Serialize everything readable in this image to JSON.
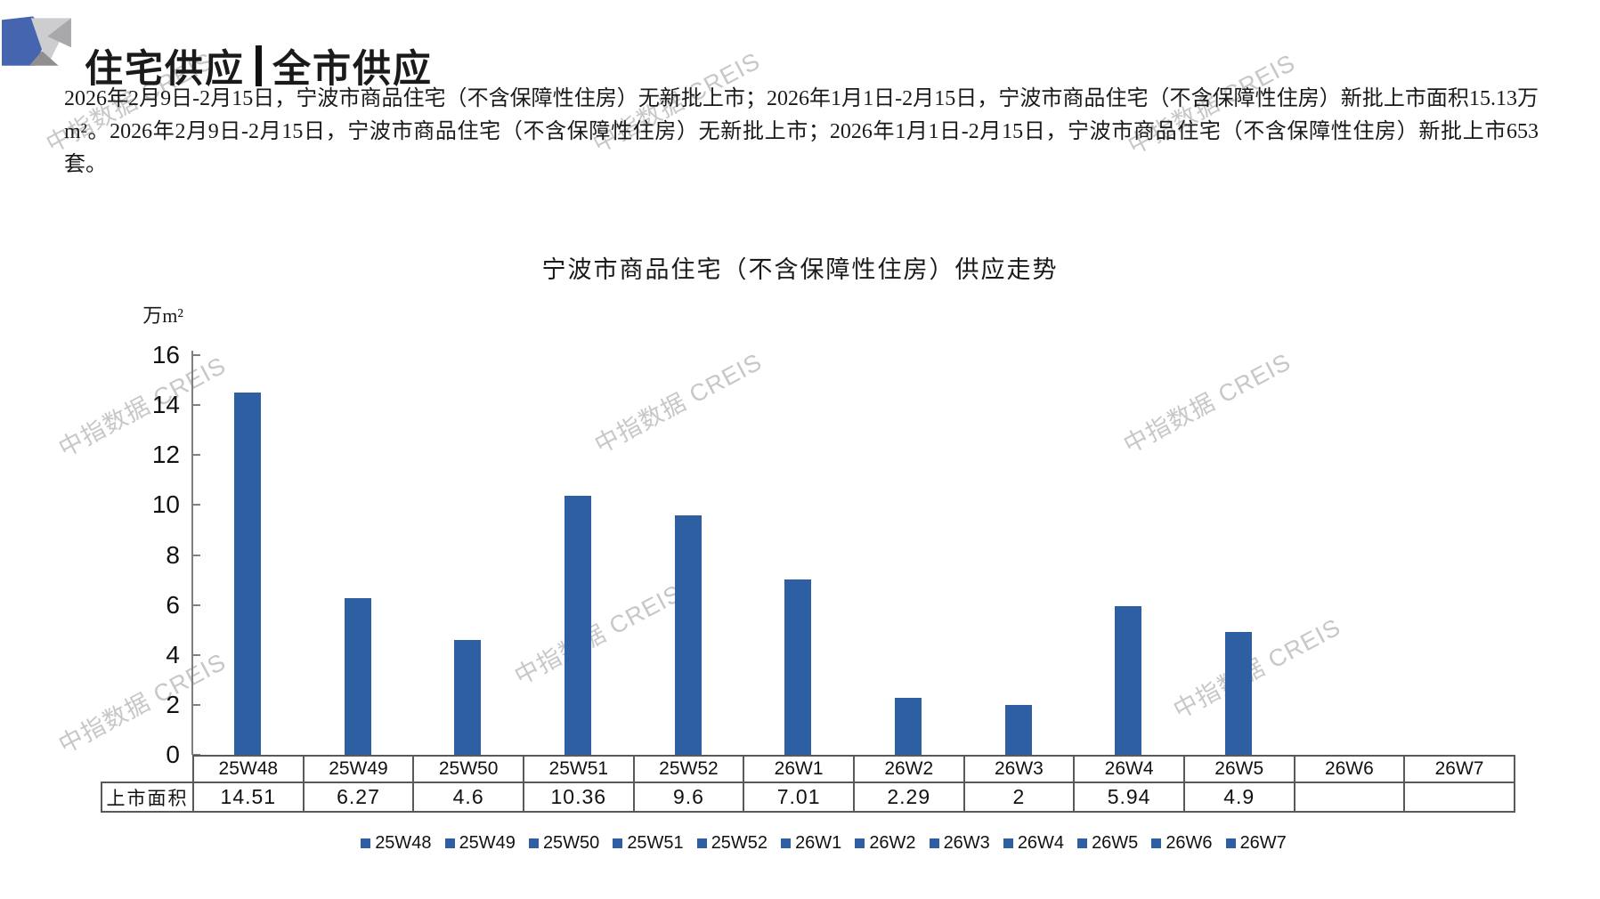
{
  "header": {
    "title_left": "住宅供应",
    "divider": "|",
    "title_right": "全市供应"
  },
  "summary": "2026年2月9日-2月15日，宁波市商品住宅（不含保障性住房）无新批上市；2026年1月1日-2月15日，宁波市商品住宅（不含保障性住房）新批上市面积15.13万m²。2026年2月9日-2月15日，宁波市商品住宅（不含保障性住房）无新批上市；2026年1月1日-2月15日，宁波市商品住宅（不含保障性住房）新批上市653套。",
  "watermark": {
    "text": "中指数据 CREIS"
  },
  "chart_data": {
    "type": "bar",
    "title": "宁波市商品住宅（不含保障性住房）供应走势",
    "xlabel": "",
    "ylabel": "万m²",
    "categories": [
      "25W48",
      "25W49",
      "25W50",
      "25W51",
      "25W52",
      "26W1",
      "26W2",
      "26W3",
      "26W4",
      "26W5",
      "26W6",
      "26W7"
    ],
    "series": [
      {
        "name": "上市面积",
        "values": [
          14.51,
          6.27,
          4.6,
          10.36,
          9.6,
          7.01,
          2.29,
          2,
          5.94,
          4.9,
          null,
          null
        ],
        "display": [
          "14.51",
          "6.27",
          "4.6",
          "10.36",
          "9.6",
          "7.01",
          "2.29",
          "2",
          "5.94",
          "4.9",
          "",
          ""
        ]
      }
    ],
    "ylim": [
      0,
      16
    ],
    "yticks": [
      0,
      2,
      4,
      6,
      8,
      10,
      12,
      14,
      16
    ],
    "bar_color": "#2E5FA3",
    "grid": false,
    "legend_position": "bottom",
    "data_table_attached": true
  },
  "colors": {
    "bar_blue": "#2E5FA3",
    "axis_gray": "#7f7f7f",
    "table_border": "#595959",
    "watermark_gray": "#c7c7c7",
    "logo_blue": "#4565AE",
    "logo_gray_light": "#cdcdd0",
    "logo_gray_mid": "#a8a8ab",
    "logo_gray_dark": "#8f8f92"
  }
}
